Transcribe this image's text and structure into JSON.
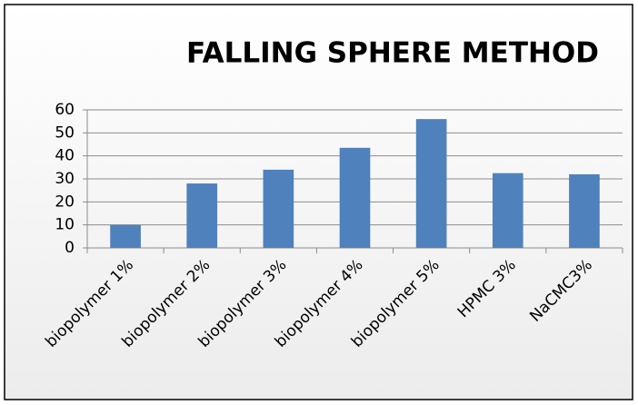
{
  "chart_data": {
    "type": "bar",
    "title": "FALLING SPHERE METHOD",
    "categories": [
      "biopolymer 1%",
      "biopolymer 2%",
      "biopolymer 3%",
      "biopolymer 4%",
      "biopolymer 5%",
      "HPMC 3%",
      "NaCMC3%"
    ],
    "values": [
      10,
      28,
      34,
      43.5,
      56,
      32.5,
      32
    ],
    "color": "#4f81bd",
    "ylim": [
      0,
      60
    ],
    "yticks": [
      0,
      10,
      20,
      30,
      40,
      50,
      60
    ],
    "grid": true
  }
}
